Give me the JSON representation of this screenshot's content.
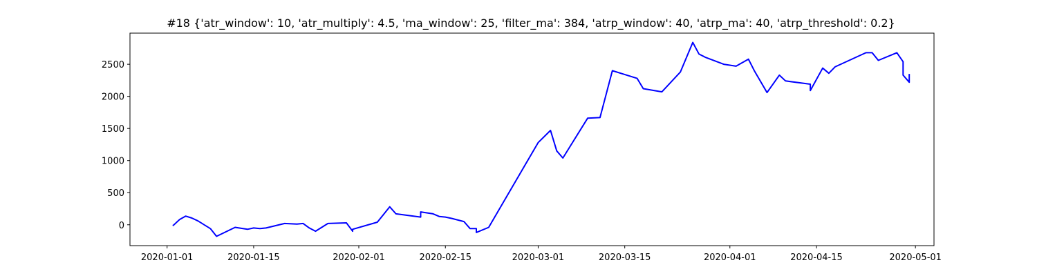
{
  "chart_data": {
    "type": "line",
    "title": "#18 {'atr_window': 10, 'atr_multiply': 4.5, 'ma_window': 25, 'filter_ma': 384, 'atrp_window': 40, 'atrp_ma': 40, 'atrp_threshold': 0.2}",
    "xlabel": "",
    "ylabel": "",
    "x_axis_type": "date",
    "xlim": [
      "2019-12-26",
      "2020-05-04"
    ],
    "ylim": [
      -325,
      2985
    ],
    "x_ticks": [
      "2020-01-01",
      "2020-01-15",
      "2020-02-01",
      "2020-02-15",
      "2020-03-01",
      "2020-03-15",
      "2020-04-01",
      "2020-04-15",
      "2020-05-01"
    ],
    "y_ticks": [
      0,
      500,
      1000,
      1500,
      2000,
      2500
    ],
    "grid": false,
    "legend": "none",
    "line_color": "#0000ff",
    "series": [
      {
        "x": [
          "2020-01-02",
          "2020-01-02",
          "2020-01-03",
          "2020-01-04",
          "2020-01-05",
          "2020-01-06",
          "2020-01-07",
          "2020-01-08",
          "2020-01-09",
          "2020-01-12",
          "2020-01-14",
          "2020-01-15",
          "2020-01-16",
          "2020-01-17",
          "2020-01-20",
          "2020-01-22",
          "2020-01-22",
          "2020-01-23",
          "2020-01-24",
          "2020-01-25",
          "2020-01-27",
          "2020-01-30",
          "2020-01-31",
          "2020-01-31",
          "2020-02-04",
          "2020-02-06",
          "2020-02-07",
          "2020-02-11",
          "2020-02-11",
          "2020-02-13",
          "2020-02-14",
          "2020-02-15",
          "2020-02-16",
          "2020-02-18",
          "2020-02-19",
          "2020-02-20",
          "2020-02-20",
          "2020-02-22",
          "2020-03-01",
          "2020-03-03",
          "2020-03-04",
          "2020-03-05",
          "2020-03-09",
          "2020-03-11",
          "2020-03-13",
          "2020-03-17",
          "2020-03-18",
          "2020-03-21",
          "2020-03-24",
          "2020-03-26",
          "2020-03-27",
          "2020-03-28",
          "2020-03-31",
          "2020-04-02",
          "2020-04-04",
          "2020-04-05",
          "2020-04-07",
          "2020-04-09",
          "2020-04-10",
          "2020-04-14",
          "2020-04-14",
          "2020-04-16",
          "2020-04-17",
          "2020-04-18",
          "2020-04-23",
          "2020-04-24",
          "2020-04-25",
          "2020-04-28",
          "2020-04-29",
          "2020-04-29",
          "2020-04-30",
          "2020-04-30"
        ],
        "values": [
          0,
          -10,
          80,
          135,
          105,
          60,
          0,
          -60,
          -180,
          -40,
          -70,
          -50,
          -60,
          -50,
          20,
          10,
          10,
          20,
          -50,
          -100,
          20,
          30,
          -100,
          -70,
          40,
          280,
          170,
          120,
          200,
          170,
          130,
          120,
          100,
          50,
          -60,
          -60,
          -120,
          -40,
          1280,
          1470,
          1150,
          1040,
          1660,
          1670,
          2400,
          2280,
          2120,
          2070,
          2380,
          2840,
          2660,
          2610,
          2500,
          2470,
          2580,
          2390,
          2060,
          2330,
          2240,
          2190,
          2090,
          2440,
          2360,
          2460,
          2680,
          2680,
          2560,
          2680,
          2540,
          2330,
          2220,
          2350
        ]
      }
    ]
  }
}
